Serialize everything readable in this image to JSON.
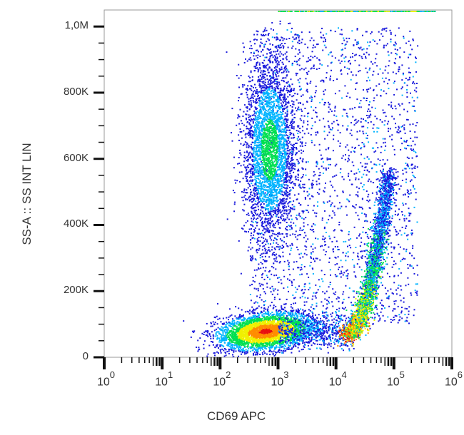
{
  "chart_data": {
    "type": "scatter",
    "subtype": "flow-cytometry density dot plot",
    "title": "",
    "xlabel": "CD69 APC",
    "ylabel": "SS-A :: SS INT LIN",
    "x_scale": "log",
    "x_range": [
      1,
      1000000
    ],
    "x_ticks": [
      {
        "base": "10",
        "exp": "0"
      },
      {
        "base": "10",
        "exp": "1"
      },
      {
        "base": "10",
        "exp": "2"
      },
      {
        "base": "10",
        "exp": "3"
      },
      {
        "base": "10",
        "exp": "4"
      },
      {
        "base": "10",
        "exp": "5"
      },
      {
        "base": "10",
        "exp": "6"
      }
    ],
    "y_scale": "linear",
    "y_range": [
      0,
      1050000
    ],
    "y_ticks": [
      "0",
      "200K",
      "400K",
      "600K",
      "800K",
      "1,0M"
    ],
    "y_tick_values": [
      0,
      200000,
      400000,
      600000,
      800000,
      1000000
    ],
    "colormap": [
      "#1a1adc",
      "#00b4ff",
      "#00e050",
      "#f0f000",
      "#ff8c00",
      "#e81010"
    ],
    "grid": false,
    "legend": null,
    "populations": [
      {
        "name": "low SSC / CD69-neg cluster",
        "x_center": 600,
        "y_center": 80000,
        "x_spread_decades": 0.45,
        "y_spread": 30000,
        "density": "high"
      },
      {
        "name": "high SSC cluster (granulocytes)",
        "x_center": 700,
        "y_center": 620000,
        "x_spread_decades": 0.25,
        "y_spread": 150000,
        "density": "medium"
      },
      {
        "name": "CD69-positive diagonal band",
        "x_start": 15000,
        "y_start": 70000,
        "x_end": 80000,
        "y_end": 560000,
        "density": "high"
      },
      {
        "name": "diffuse background",
        "x_range": [
          300,
          300000
        ],
        "y_range": [
          100000,
          1000000
        ],
        "density": "low"
      }
    ]
  }
}
